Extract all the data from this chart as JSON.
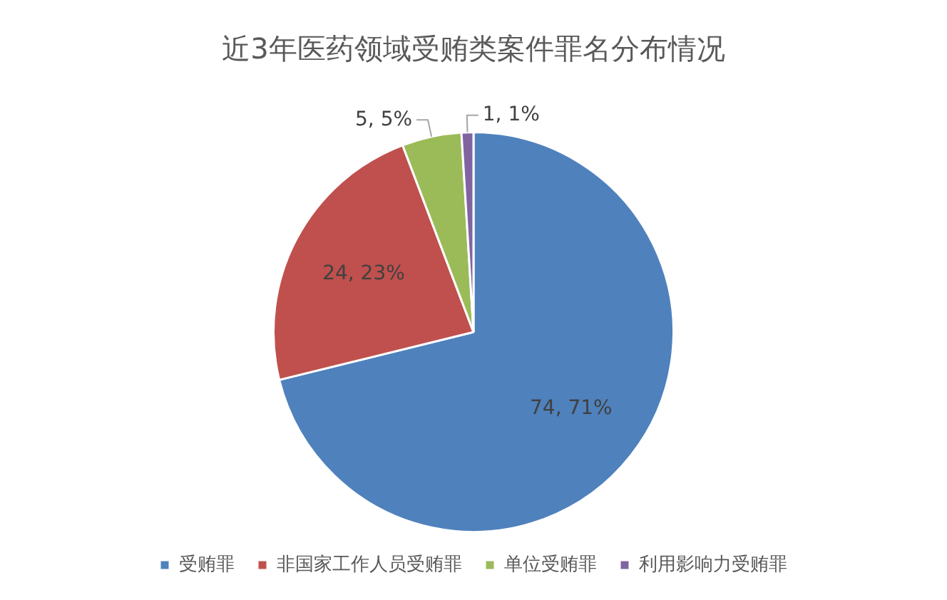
{
  "chart_data": {
    "type": "pie",
    "title": "近3年医药领域受贿类案件罪名分布情况",
    "categories": [
      "受贿罪",
      "非国家工作人员受贿罪",
      "单位受贿罪",
      "利用影响力受贿罪"
    ],
    "values": [
      74,
      24,
      5,
      1
    ],
    "colors": [
      "#4f81bd",
      "#c0504d",
      "#9bbb59",
      "#8064a2"
    ],
    "value_labels": [
      "74, 71%",
      "24, 23%",
      "5, 5%",
      "1, 1%"
    ],
    "legend": "bottom"
  }
}
